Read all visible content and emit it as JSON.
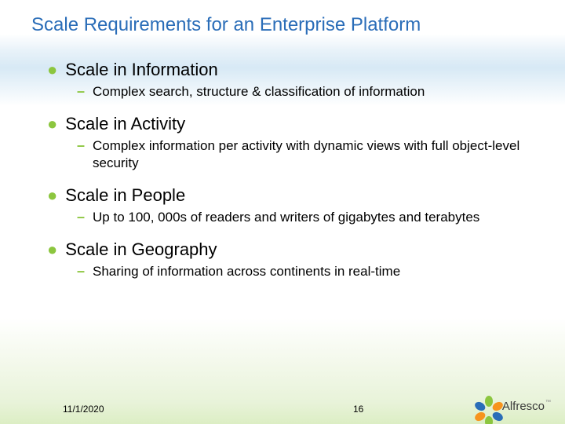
{
  "title": "Scale Requirements for an Enterprise Platform",
  "colors": {
    "title_color": "#2a6db8",
    "bullet_color": "#8cc63f",
    "text_color": "#000000",
    "bg_top": "#ffffff",
    "bg_blue_band": "#d7e9f5",
    "bg_green_bottom": "#dceec4"
  },
  "typography": {
    "title_fontsize": 24,
    "level1_fontsize": 22,
    "level2_fontsize": 17,
    "footer_fontsize": 12,
    "font_family": "Verdana"
  },
  "items": [
    {
      "heading": "Scale in Information",
      "sub": "Complex search, structure & classification of information"
    },
    {
      "heading": "Scale in Activity",
      "sub": "Complex information per activity with dynamic views with full object-level security"
    },
    {
      "heading": "Scale in People",
      "sub": "Up to 100, 000s of readers and writers of gigabytes and terabytes"
    },
    {
      "heading": "Scale in Geography",
      "sub": "Sharing of information across continents in real-time"
    }
  ],
  "footer": {
    "date": "11/1/2020",
    "page": "16"
  },
  "logo": {
    "text": "Alfresco",
    "tm": "™",
    "petal_colors": [
      "#8cc63f",
      "#f7941d",
      "#2a6db8",
      "#8cc63f",
      "#f7941d",
      "#2a6db8"
    ]
  }
}
